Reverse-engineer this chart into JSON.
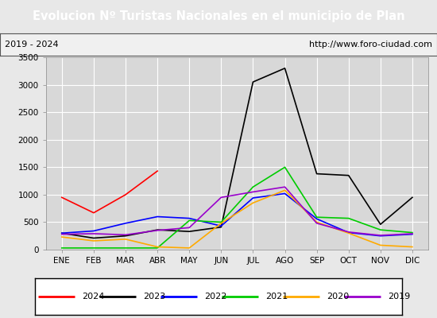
{
  "title": "Evolucion Nº Turistas Nacionales en el municipio de Plan",
  "subtitle_left": "2019 - 2024",
  "subtitle_right": "http://www.foro-ciudad.com",
  "months": [
    "ENE",
    "FEB",
    "MAR",
    "ABR",
    "MAY",
    "JUN",
    "JUL",
    "AGO",
    "SEP",
    "OCT",
    "NOV",
    "DIC"
  ],
  "ylim": [
    0,
    3500
  ],
  "yticks": [
    0,
    500,
    1000,
    1500,
    2000,
    2500,
    3000,
    3500
  ],
  "series": {
    "2024": {
      "color": "#ff0000",
      "data": [
        950,
        670,
        1000,
        1430,
        null,
        null,
        null,
        null,
        null,
        null,
        null,
        null
      ]
    },
    "2023": {
      "color": "#000000",
      "data": [
        300,
        210,
        250,
        360,
        330,
        410,
        3050,
        3300,
        1380,
        1350,
        460,
        950
      ]
    },
    "2022": {
      "color": "#0000ff",
      "data": [
        300,
        340,
        480,
        600,
        570,
        430,
        940,
        1020,
        560,
        310,
        250,
        280
      ]
    },
    "2021": {
      "color": "#00cc00",
      "data": [
        30,
        30,
        30,
        30,
        530,
        500,
        1140,
        1500,
        590,
        570,
        360,
        310
      ]
    },
    "2020": {
      "color": "#ffaa00",
      "data": [
        230,
        160,
        190,
        50,
        30,
        480,
        850,
        1080,
        500,
        300,
        80,
        50
      ]
    },
    "2019": {
      "color": "#9900cc",
      "data": [
        280,
        290,
        270,
        350,
        400,
        950,
        1050,
        1140,
        480,
        320,
        260,
        290
      ]
    }
  },
  "title_color": "#ffffff",
  "title_bg": "#4472c4",
  "plot_bg": "#d8d8d8",
  "outer_bg": "#e8e8e8",
  "border_color": "#555555",
  "grid_color": "#ffffff",
  "legend_years": [
    "2024",
    "2023",
    "2022",
    "2021",
    "2020",
    "2019"
  ]
}
